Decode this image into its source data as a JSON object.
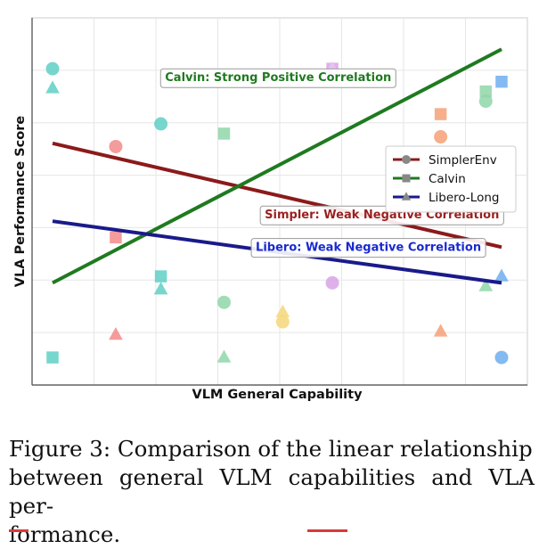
{
  "chart_data": {
    "type": "scatter",
    "title": "",
    "xlabel": "VLM General Capability",
    "ylabel": "VLA Performance Score",
    "xlim": [
      0,
      10
    ],
    "ylim": [
      0,
      10
    ],
    "grid": true,
    "legend_position": "center-right",
    "legend": [
      {
        "name": "SimplerEnv",
        "color": "#8b1a1a",
        "marker": "circle"
      },
      {
        "name": "Calvin",
        "color": "#1f7a1f",
        "marker": "square"
      },
      {
        "name": "Libero-Long",
        "color": "#1a1a8b",
        "marker": "triangle"
      }
    ],
    "points": [
      {
        "x": 0.4,
        "y": 9.2,
        "marker": "circle",
        "color": "#5fcfc6"
      },
      {
        "x": 0.4,
        "y": 8.6,
        "marker": "triangle",
        "color": "#5fcfc6"
      },
      {
        "x": 0.4,
        "y": 0.3,
        "marker": "square",
        "color": "#5fcfc6"
      },
      {
        "x": 1.8,
        "y": 6.8,
        "marker": "circle",
        "color": "#f28b8b"
      },
      {
        "x": 1.8,
        "y": 4.0,
        "marker": "square",
        "color": "#f28b8b"
      },
      {
        "x": 1.8,
        "y": 1.0,
        "marker": "triangle",
        "color": "#f28b8b"
      },
      {
        "x": 2.8,
        "y": 7.5,
        "marker": "circle",
        "color": "#5fcfc6"
      },
      {
        "x": 2.8,
        "y": 2.8,
        "marker": "square",
        "color": "#5fcfc6"
      },
      {
        "x": 2.8,
        "y": 2.4,
        "marker": "triangle",
        "color": "#5fcfc6"
      },
      {
        "x": 4.2,
        "y": 7.2,
        "marker": "square",
        "color": "#8fd6a8"
      },
      {
        "x": 4.2,
        "y": 2.0,
        "marker": "circle",
        "color": "#8fd6a8"
      },
      {
        "x": 4.2,
        "y": 0.3,
        "marker": "triangle",
        "color": "#8fd6a8"
      },
      {
        "x": 5.5,
        "y": 1.7,
        "marker": "triangle",
        "color": "#f5d77a"
      },
      {
        "x": 5.5,
        "y": 1.4,
        "marker": "circle",
        "color": "#f5d77a"
      },
      {
        "x": 6.6,
        "y": 9.2,
        "marker": "square",
        "color": "#d9a3e6"
      },
      {
        "x": 6.6,
        "y": 9.2,
        "marker": "triangle",
        "color": "#e8c8f0"
      },
      {
        "x": 6.6,
        "y": 2.6,
        "marker": "circle",
        "color": "#d9a3e6"
      },
      {
        "x": 9.0,
        "y": 7.8,
        "marker": "square",
        "color": "#f5a077"
      },
      {
        "x": 9.0,
        "y": 7.1,
        "marker": "circle",
        "color": "#f5a077"
      },
      {
        "x": 9.0,
        "y": 1.1,
        "marker": "triangle",
        "color": "#f5a077"
      },
      {
        "x": 10.0,
        "y": 8.5,
        "marker": "square",
        "color": "#8fd6a8"
      },
      {
        "x": 10.0,
        "y": 8.2,
        "marker": "circle",
        "color": "#8fd6a8"
      },
      {
        "x": 10.0,
        "y": 2.5,
        "marker": "triangle",
        "color": "#8fd6a8"
      },
      {
        "x": 10.35,
        "y": 8.8,
        "marker": "square",
        "color": "#6eaef0"
      },
      {
        "x": 10.35,
        "y": 2.8,
        "marker": "triangle",
        "color": "#6eaef0"
      },
      {
        "x": 10.35,
        "y": 0.3,
        "marker": "circle",
        "color": "#6eaef0"
      }
    ],
    "lines": [
      {
        "name": "SimplerEnv",
        "color": "#8b1a1a",
        "x": [
          0.4,
          10.35
        ],
        "y": [
          6.9,
          3.7
        ]
      },
      {
        "name": "Calvin",
        "color": "#1f7a1f",
        "x": [
          0.4,
          10.35
        ],
        "y": [
          2.6,
          9.8
        ]
      },
      {
        "name": "Libero-Long",
        "color": "#1a1a8b",
        "x": [
          0.4,
          10.35
        ],
        "y": [
          4.5,
          2.6
        ]
      }
    ],
    "annotations": [
      {
        "text": "Calvin: Strong Positive Correlation",
        "color": "#1f7a1f",
        "x": 5.4,
        "y": 8.95
      },
      {
        "text": "Simpler: Weak Negative Correlation",
        "color": "#9a1f1f",
        "x": 7.7,
        "y": 4.72
      },
      {
        "text": "Libero: Weak Negative Correlation",
        "color": "#1a2ad0",
        "x": 7.4,
        "y": 3.72
      }
    ]
  },
  "caption": {
    "line1": "Figure 3: Comparison of the linear relationship",
    "line2": "between general VLM capabilities and VLA per-",
    "line3": "formance."
  }
}
